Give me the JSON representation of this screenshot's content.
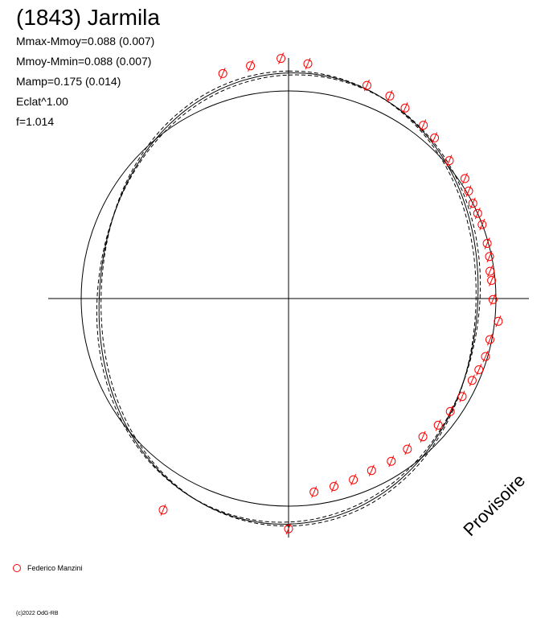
{
  "title": "(1843) Jarmila",
  "stats": [
    "Mmax-Mmoy=0.088 (0.007)",
    "Mmoy-Mmin=0.088 (0.007)",
    "Mamp=0.175 (0.014)",
    "Eclat^1.00",
    "f=1.014"
  ],
  "legend": {
    "label": "Federico Manzini",
    "marker_color": "#ff0000"
  },
  "watermark": "Provisoire",
  "copyright": "(c)2022 OdG-RB",
  "chart_data": {
    "type": "scatter",
    "coordinate_system": "polar",
    "angle_unit": "rotational phase (degrees, 0 at top, clockwise)",
    "radius_unit": "relative brightness (reference circle = 1.0)",
    "reference_circle_radius": 1.0,
    "rlim": [
      0,
      1.18
    ],
    "grid": false,
    "axes_crosshair": true,
    "marker_color": "#ff0000",
    "series": [
      {
        "name": "Federico Manzini",
        "points": [
          {
            "phase": 343.7,
            "r": 1.129
          },
          {
            "phase": 350.7,
            "r": 1.136
          },
          {
            "phase": 358.2,
            "r": 1.157
          },
          {
            "phase": 4.7,
            "r": 1.135
          },
          {
            "phase": 20.2,
            "r": 1.094
          },
          {
            "phase": 26.6,
            "r": 1.091
          },
          {
            "phase": 31.5,
            "r": 1.076
          },
          {
            "phase": 37.9,
            "r": 1.058
          },
          {
            "phase": 42.3,
            "r": 1.046
          },
          {
            "phase": 49.4,
            "r": 1.021
          },
          {
            "phase": 55.8,
            "r": 1.028
          },
          {
            "phase": 59.2,
            "r": 1.011
          },
          {
            "phase": 62.7,
            "r": 1.0
          },
          {
            "phase": 65.8,
            "r": 1.0
          },
          {
            "phase": 69.1,
            "r": 0.999
          },
          {
            "phase": 74.5,
            "r": 0.994
          },
          {
            "phase": 78.2,
            "r": 0.99
          },
          {
            "phase": 82.3,
            "r": 0.98
          },
          {
            "phase": 84.9,
            "r": 0.983
          },
          {
            "phase": 90.3,
            "r": 0.986
          },
          {
            "phase": 96.2,
            "r": 1.017
          },
          {
            "phase": 101.5,
            "r": 0.991
          },
          {
            "phase": 106.4,
            "r": 0.99
          },
          {
            "phase": 110.5,
            "r": 0.98
          },
          {
            "phase": 114.0,
            "r": 0.969
          },
          {
            "phase": 119.4,
            "r": 0.961
          },
          {
            "phase": 124.9,
            "r": 0.951
          },
          {
            "phase": 130.2,
            "r": 0.945
          },
          {
            "phase": 135.8,
            "r": 0.929
          },
          {
            "phase": 141.7,
            "r": 0.924
          },
          {
            "phase": 147.7,
            "r": 0.927
          },
          {
            "phase": 154.2,
            "r": 0.92
          },
          {
            "phase": 160.3,
            "r": 0.927
          },
          {
            "phase": 166.4,
            "r": 0.931
          },
          {
            "phase": 172.5,
            "r": 0.94
          },
          {
            "phase": 180.0,
            "r": 1.109
          },
          {
            "phase": 210.7,
            "r": 1.184
          }
        ]
      }
    ],
    "fit_curves": [
      {
        "style": "solid",
        "r0": 1.0,
        "amp": 0.088,
        "phase_max": 5.0
      },
      {
        "style": "dashed",
        "r0": 1.0,
        "amp": 0.08,
        "phase_max": 8.0
      },
      {
        "style": "dashed",
        "r0": 1.0,
        "amp": 0.096,
        "phase_max": 2.0
      }
    ]
  }
}
